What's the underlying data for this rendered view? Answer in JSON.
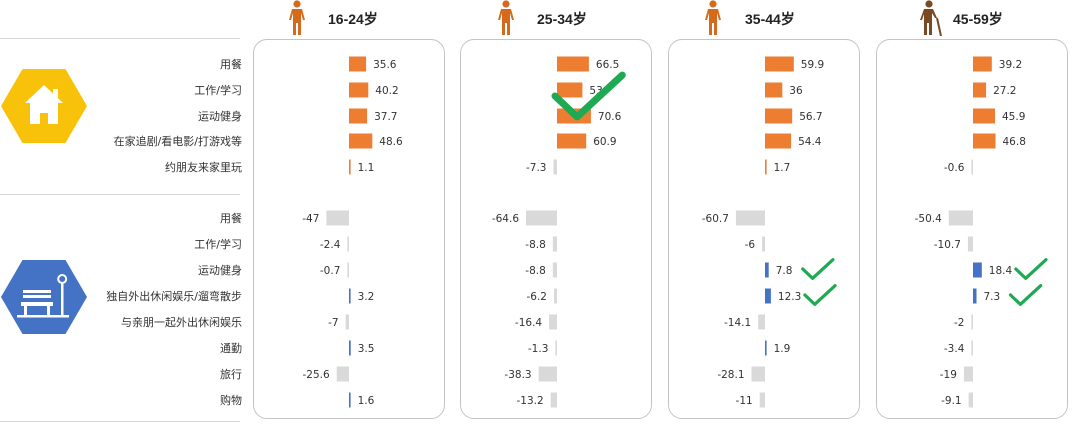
{
  "categories": {
    "home": [
      "用餐",
      "工作/学习",
      "运动健身",
      "在家追剧/看电影/打游戏等",
      "约朋友来家里玩"
    ],
    "outside": [
      "用餐",
      "工作/学习",
      "运动健身",
      "独自外出休闲娱乐/遛弯散步",
      "与亲朋一起外出休闲娱乐",
      "通勤",
      "旅行",
      "购物"
    ]
  },
  "icons": {
    "home": "home-icon",
    "outside": "park-bench-icon",
    "person": "person-icon",
    "elder": "elderly-person-icon",
    "check": "checkmark-icon"
  },
  "colors": {
    "home_bar": "#ED7D31",
    "outside_positive": "#4472C4",
    "negative": "#D9D9D9",
    "check": "#1DAA52",
    "home_hex": "#F9C20A",
    "outside_hex": "#4472C4",
    "person": "#D46A1B",
    "elder": "#7A4A24"
  },
  "chart_data": {
    "type": "bar",
    "orientation": "horizontal",
    "groups": [
      {
        "name": "16-24岁",
        "icon": "person-icon",
        "home_values": [
          35.6,
          40.2,
          37.7,
          48.6,
          1.1
        ],
        "outside_values": [
          -47,
          -2.4,
          -0.7,
          3.2,
          -7,
          3.5,
          -25.6,
          1.6
        ],
        "home_labels": [
          "35.6",
          "40.2",
          "37.7",
          "48.6",
          "1.1"
        ],
        "outside_labels": [
          "-47",
          "-2.4",
          "-0.7",
          "3.2",
          "-7",
          "3.5",
          "-25.6",
          "1.6"
        ],
        "checks": []
      },
      {
        "name": "25-34岁",
        "icon": "person-icon",
        "home_values": [
          66.5,
          53,
          70.6,
          60.9,
          -7.3
        ],
        "outside_values": [
          -64.6,
          -8.8,
          -8.8,
          -6.2,
          -16.4,
          -1.3,
          -38.3,
          -13.2
        ],
        "home_labels": [
          "66.5",
          "53",
          "70.6",
          "60.9",
          "-7.3"
        ],
        "outside_labels": [
          "-64.6",
          "-8.8",
          "-8.8",
          "-6.2",
          "-16.4",
          "-1.3",
          "-38.3",
          "-13.2"
        ],
        "checks": [
          "home.1"
        ]
      },
      {
        "name": "35-44岁",
        "icon": "person-icon",
        "home_values": [
          59.9,
          36,
          56.7,
          54.4,
          1.7
        ],
        "outside_values": [
          -60.7,
          -6,
          7.8,
          12.3,
          -14.1,
          1.9,
          -28.1,
          -11
        ],
        "home_labels": [
          "59.9",
          "36",
          "56.7",
          "54.4",
          "1.7"
        ],
        "outside_labels": [
          "-60.7",
          "-6",
          "7.8",
          "12.3",
          "-14.1",
          "1.9",
          "-28.1",
          "-11"
        ],
        "checks": [
          "outside.2",
          "outside.3"
        ]
      },
      {
        "name": "45-59岁",
        "icon": "elderly-person-icon",
        "home_values": [
          39.2,
          27.2,
          45.9,
          46.8,
          -0.6
        ],
        "outside_values": [
          -50.4,
          -10.7,
          18.4,
          7.3,
          -2,
          -3.4,
          -19,
          -9.1
        ],
        "home_labels": [
          "39.2",
          "27.2",
          "45.9",
          "46.8",
          "-0.6"
        ],
        "outside_labels": [
          "-50.4",
          "-10.7",
          "18.4",
          "7.3",
          "-2",
          "-3.4",
          "-19",
          "-9.1"
        ],
        "checks": [
          "outside.2",
          "outside.3"
        ]
      }
    ]
  }
}
